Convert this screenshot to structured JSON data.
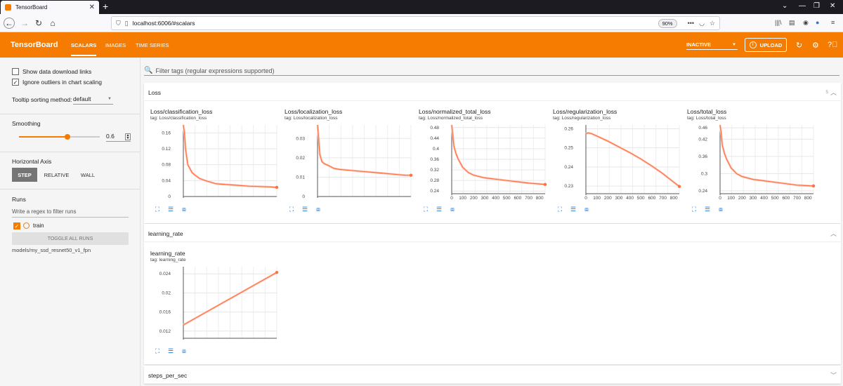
{
  "browser": {
    "tab_title": "TensorBoard",
    "url": "localhost:6006/#scalars",
    "zoom": "90%"
  },
  "header": {
    "brand": "TensorBoard",
    "tabs": [
      {
        "label": "SCALARS",
        "active": true
      },
      {
        "label": "IMAGES",
        "active": false
      },
      {
        "label": "TIME SERIES",
        "active": false
      }
    ],
    "status_select": "INACTIVE",
    "upload_label": "UPLOAD"
  },
  "sidebar": {
    "show_download_links": "Show data download links",
    "ignore_outliers": "Ignore outliers in chart scaling",
    "tooltip_sorting_label": "Tooltip sorting method:",
    "tooltip_sorting_value": "default",
    "smoothing_label": "Smoothing",
    "smoothing_value": "0.6",
    "smoothing_fraction": 0.6,
    "horizontal_axis_label": "Horizontal Axis",
    "axis_options": [
      "STEP",
      "RELATIVE",
      "WALL"
    ],
    "runs_label": "Runs",
    "runs_filter_placeholder": "Write a regex to filter runs",
    "run_name": "train",
    "toggle_all_runs": "TOGGLE ALL RUNS",
    "logdir": "models/my_ssd_resnet50_v1_fpn"
  },
  "main": {
    "filter_placeholder": "Filter tags (regular expressions supported)",
    "groups": [
      {
        "name": "Loss",
        "count": "5"
      },
      {
        "name": "learning_rate"
      },
      {
        "name": "steps_per_sec"
      }
    ]
  },
  "colors": {
    "accent": "#f57c00",
    "series": "#ff7043",
    "series_light": "#ffccbc"
  },
  "charts": [
    {
      "title": "Loss/classification_loss",
      "tag": "tag: Loss/classification_loss"
    },
    {
      "title": "Loss/localization_loss",
      "tag": "tag: Loss/localization_loss"
    },
    {
      "title": "Loss/normalized_total_loss",
      "tag": "tag: Loss/normalized_total_loss"
    },
    {
      "title": "Loss/regularization_loss",
      "tag": "tag: Loss/regularization_loss"
    },
    {
      "title": "Loss/total_loss",
      "tag": "tag: Loss/total_loss"
    },
    {
      "title": "learning_rate",
      "tag": "tag: learning_rate"
    }
  ],
  "chart_data": [
    {
      "type": "line",
      "title": "Loss/classification_loss",
      "yticks": [
        "0.16",
        "0.12",
        "0.08",
        "0.04",
        "0"
      ],
      "ylim": [
        0,
        0.18
      ],
      "xticks": [],
      "xlim": [
        0,
        850
      ],
      "series": [
        {
          "x": [
            0,
            10,
            20,
            40,
            60,
            80,
            100,
            150,
            200,
            300,
            400,
            500,
            600,
            700,
            800,
            850
          ],
          "y": [
            0.18,
            0.16,
            0.12,
            0.08,
            0.07,
            0.06,
            0.055,
            0.045,
            0.04,
            0.032,
            0.03,
            0.028,
            0.026,
            0.025,
            0.024,
            0.023
          ]
        }
      ]
    },
    {
      "type": "line",
      "title": "Loss/localization_loss",
      "yticks": [
        "0.03",
        "0.02",
        "0.01",
        "0"
      ],
      "ylim": [
        0,
        0.037
      ],
      "xticks": [],
      "xlim": [
        0,
        850
      ],
      "series": [
        {
          "x": [
            0,
            10,
            20,
            40,
            60,
            100,
            150,
            200,
            300,
            400,
            500,
            600,
            700,
            800,
            850
          ],
          "y": [
            0.037,
            0.03,
            0.022,
            0.018,
            0.017,
            0.016,
            0.0145,
            0.014,
            0.0135,
            0.013,
            0.0125,
            0.012,
            0.0115,
            0.011,
            0.011
          ]
        }
      ]
    },
    {
      "type": "line",
      "title": "Loss/normalized_total_loss",
      "yticks": [
        "0.48",
        "0.44",
        "0.4",
        "0.36",
        "0.32",
        "0.28",
        "0.24"
      ],
      "ylim": [
        0.23,
        0.49
      ],
      "xticks": [
        "0",
        "100",
        "200",
        "300",
        "400",
        "500",
        "600",
        "700",
        "800"
      ],
      "xlim": [
        0,
        850
      ],
      "series": [
        {
          "x": [
            0,
            10,
            20,
            40,
            60,
            100,
            150,
            200,
            300,
            400,
            500,
            600,
            700,
            800,
            850
          ],
          "y": [
            0.49,
            0.45,
            0.41,
            0.38,
            0.36,
            0.33,
            0.31,
            0.3,
            0.29,
            0.285,
            0.28,
            0.275,
            0.27,
            0.267,
            0.265
          ]
        }
      ]
    },
    {
      "type": "line",
      "title": "Loss/regularization_loss",
      "yticks": [
        "0.26",
        "0.25",
        "0.24",
        "0.23"
      ],
      "ylim": [
        0.226,
        0.262
      ],
      "xticks": [
        "0",
        "100",
        "200",
        "300",
        "400",
        "500",
        "600",
        "700",
        "800"
      ],
      "xlim": [
        0,
        850
      ],
      "series": [
        {
          "x": [
            0,
            20,
            50,
            100,
            200,
            300,
            400,
            500,
            600,
            700,
            800,
            850
          ],
          "y": [
            0.2575,
            0.2578,
            0.2575,
            0.2562,
            0.2535,
            0.2505,
            0.2475,
            0.2442,
            0.2405,
            0.2365,
            0.232,
            0.2298
          ]
        }
      ]
    },
    {
      "type": "line",
      "title": "Loss/total_loss",
      "yticks": [
        "0.46",
        "0.42",
        "0.36",
        "0.3",
        "0.24"
      ],
      "ylim": [
        0.23,
        0.47
      ],
      "xticks": [
        "0",
        "100",
        "200",
        "300",
        "400",
        "500",
        "600",
        "700",
        "800"
      ],
      "xlim": [
        0,
        850
      ],
      "series": [
        {
          "x": [
            0,
            10,
            20,
            40,
            60,
            100,
            150,
            200,
            300,
            400,
            500,
            600,
            700,
            800,
            850
          ],
          "y": [
            0.47,
            0.44,
            0.4,
            0.37,
            0.35,
            0.32,
            0.3,
            0.29,
            0.28,
            0.275,
            0.27,
            0.265,
            0.26,
            0.258,
            0.257
          ]
        }
      ]
    },
    {
      "type": "line",
      "title": "learning_rate",
      "yticks": [
        "0.024",
        "0.02",
        "0.016",
        "0.012"
      ],
      "ylim": [
        0.0105,
        0.0255
      ],
      "xticks": [],
      "xlim": [
        0,
        850
      ],
      "series": [
        {
          "x": [
            0,
            850
          ],
          "y": [
            0.0133,
            0.0243
          ]
        }
      ]
    }
  ]
}
